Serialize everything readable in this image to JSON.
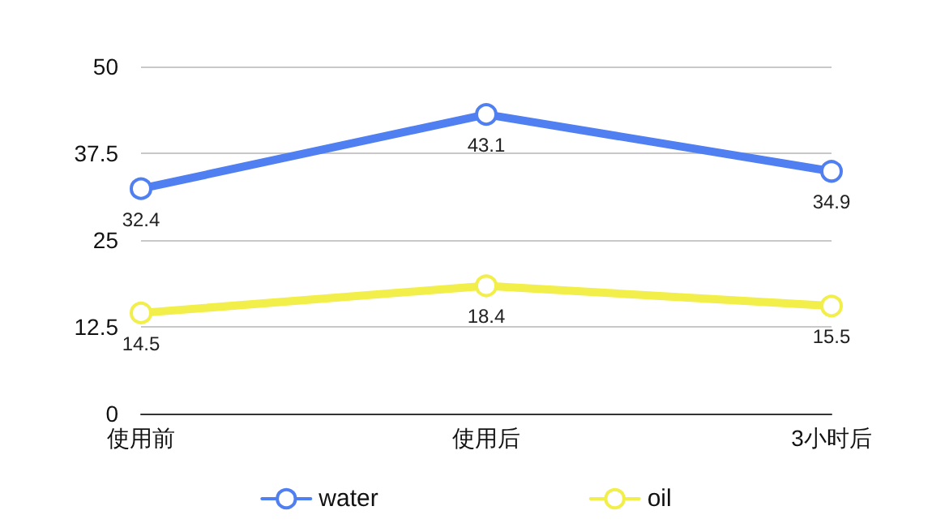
{
  "chart_data": {
    "type": "line",
    "categories": [
      "使用前",
      "使用后",
      "3小时后"
    ],
    "series": [
      {
        "name": "water",
        "color": "#4f7ff0",
        "values": [
          32.4,
          43.1,
          34.9
        ]
      },
      {
        "name": "oil",
        "color": "#f2ee4a",
        "values": [
          14.5,
          18.4,
          15.5
        ]
      }
    ],
    "ylim": [
      0,
      50
    ],
    "yticks": [
      0,
      12.5,
      25,
      37.5,
      50
    ],
    "grid": "y",
    "legend": "bottom",
    "marker": "circle",
    "line_style": "solid",
    "data_labels": true
  }
}
